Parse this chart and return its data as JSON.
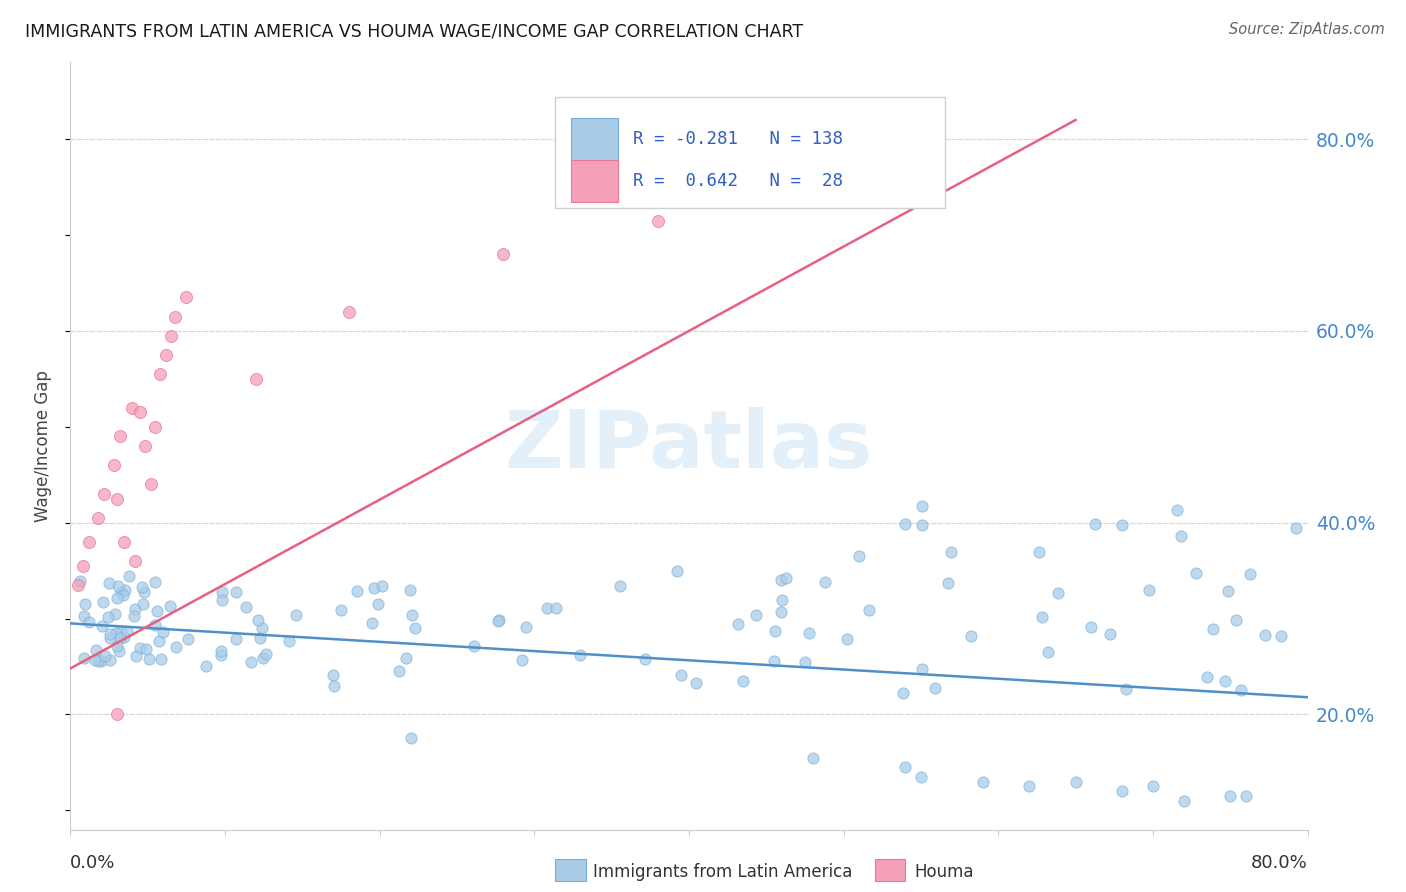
{
  "title": "IMMIGRANTS FROM LATIN AMERICA VS HOUMA WAGE/INCOME GAP CORRELATION CHART",
  "source": "Source: ZipAtlas.com",
  "ylabel": "Wage/Income Gap",
  "right_yticks": [
    "20.0%",
    "40.0%",
    "60.0%",
    "80.0%"
  ],
  "right_ytick_vals": [
    0.2,
    0.4,
    0.6,
    0.8
  ],
  "legend_label1": "Immigrants from Latin America",
  "legend_label2": "Houma",
  "watermark": "ZIPatlas",
  "blue_color": "#a8cce8",
  "blue_edge_color": "#7aaed6",
  "pink_color": "#f4a0b8",
  "pink_edge_color": "#e87898",
  "blue_line_color": "#5090c8",
  "pink_line_color": "#e86080",
  "blue_legend_color": "#a8cce8",
  "pink_legend_color": "#f4a0b8",
  "legend_text_color": "#3060c0",
  "xlim": [
    0.0,
    0.8
  ],
  "ylim": [
    0.08,
    0.88
  ],
  "blue_trend_x": [
    0.0,
    0.8
  ],
  "blue_trend_y": [
    0.295,
    0.218
  ],
  "pink_trend_x": [
    0.0,
    0.65
  ],
  "pink_trend_y": [
    0.248,
    0.82
  ],
  "grid_color": "#d8d8d8",
  "title_color": "#1a1a1a",
  "source_color": "#666666",
  "xtick_positions": [
    0.0,
    0.1,
    0.2,
    0.3,
    0.4,
    0.5,
    0.6,
    0.7,
    0.8
  ]
}
